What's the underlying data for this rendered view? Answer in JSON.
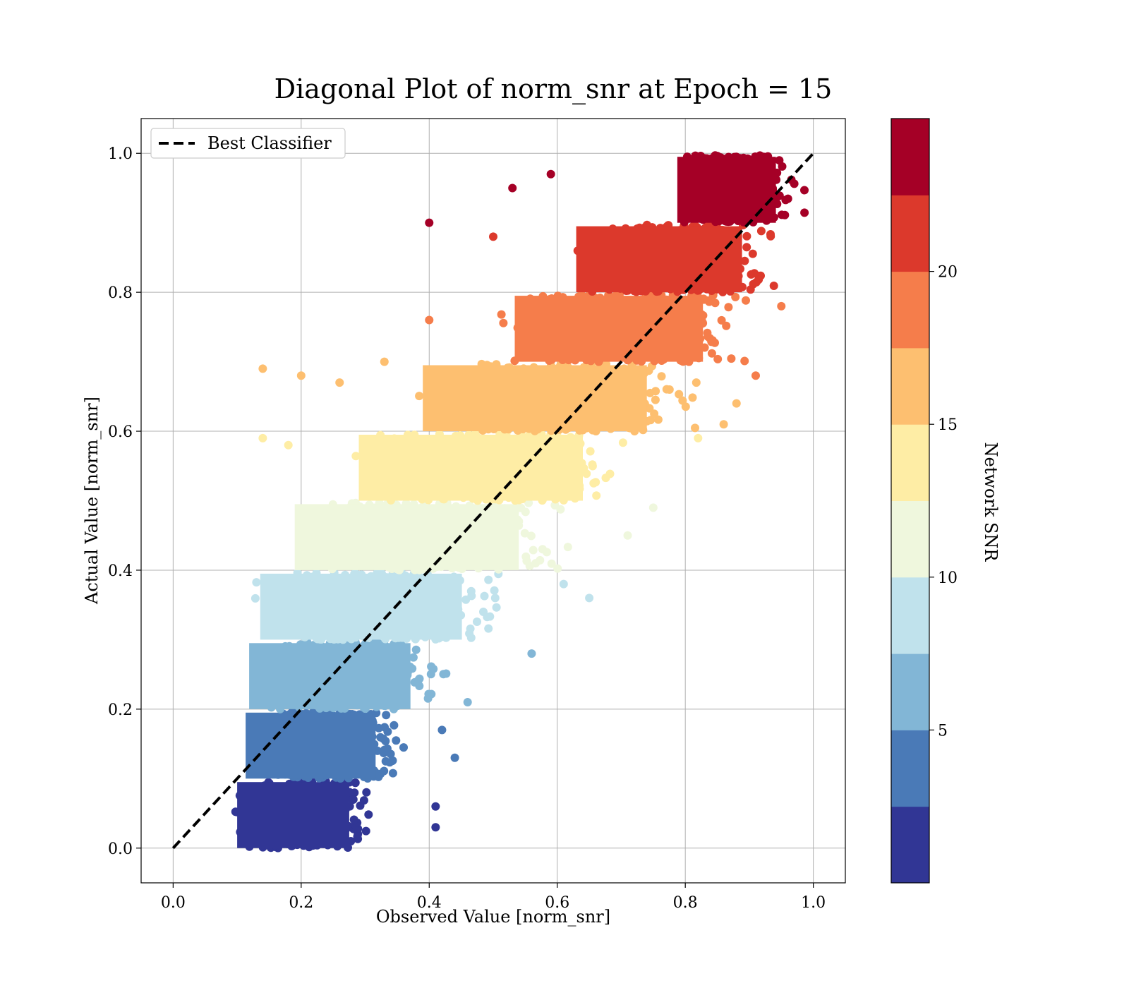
{
  "chart_data": {
    "type": "scatter",
    "title": "Diagonal Plot of norm_snr at Epoch = 15",
    "xlabel": "Observed Value [norm_snr]",
    "ylabel": "Actual Value [norm_snr]",
    "xlim": [
      -0.05,
      1.05
    ],
    "ylim": [
      -0.05,
      1.05
    ],
    "xticks": [
      0.0,
      0.2,
      0.4,
      0.6,
      0.8,
      1.0
    ],
    "yticks": [
      0.0,
      0.2,
      0.4,
      0.6,
      0.8,
      1.0
    ],
    "xtick_labels": [
      "0.0",
      "0.2",
      "0.4",
      "0.6",
      "0.8",
      "1.0"
    ],
    "ytick_labels": [
      "0.0",
      "0.2",
      "0.4",
      "0.6",
      "0.8",
      "1.0"
    ],
    "grid": true,
    "legend": {
      "position": "top-left",
      "entries": [
        "Best Classifier"
      ]
    },
    "reference_line": {
      "name": "Best Classifier",
      "style": "dashed",
      "color": "#000000",
      "x": [
        0.0,
        1.0
      ],
      "y": [
        0.0,
        1.0
      ]
    },
    "colorbar": {
      "label": "Network SNR",
      "range": [
        0,
        25
      ],
      "ticks": [
        5,
        10,
        15,
        20
      ],
      "tick_labels": [
        "5",
        "10",
        "15",
        "20"
      ],
      "colors": [
        "#313695",
        "#4575b4",
        "#74add1",
        "#abd9e9",
        "#e0f3f8",
        "#fee090",
        "#fdae61",
        "#f46d43",
        "#d73027",
        "#a50026"
      ],
      "band_colors": [
        "#313695",
        "#4a7ab7",
        "#82b6d6",
        "#c0e2ec",
        "#eff7dd",
        "#feeda5",
        "#fdbf70",
        "#f57d4b",
        "#dc392c",
        "#a50026"
      ]
    },
    "series_bands": [
      {
        "y_range": [
          0.0,
          0.1
        ],
        "x_range": [
          0.08,
          0.33
        ],
        "color": "#313695"
      },
      {
        "y_range": [
          0.1,
          0.2
        ],
        "x_range": [
          0.09,
          0.38
        ],
        "color": "#4a7ab7"
      },
      {
        "y_range": [
          0.2,
          0.3
        ],
        "x_range": [
          0.09,
          0.45
        ],
        "color": "#82b6d6"
      },
      {
        "y_range": [
          0.3,
          0.4
        ],
        "x_range": [
          0.1,
          0.55
        ],
        "color": "#c0e2ec"
      },
      {
        "y_range": [
          0.4,
          0.5
        ],
        "x_range": [
          0.15,
          0.65
        ],
        "color": "#eff7dd"
      },
      {
        "y_range": [
          0.5,
          0.6
        ],
        "x_range": [
          0.25,
          0.75
        ],
        "color": "#feeda5"
      },
      {
        "y_range": [
          0.6,
          0.7
        ],
        "x_range": [
          0.35,
          0.85
        ],
        "color": "#fdbf70"
      },
      {
        "y_range": [
          0.7,
          0.8
        ],
        "x_range": [
          0.5,
          0.92
        ],
        "color": "#f57d4b"
      },
      {
        "y_range": [
          0.8,
          0.9
        ],
        "x_range": [
          0.6,
          0.97
        ],
        "color": "#dc392c"
      },
      {
        "y_range": [
          0.9,
          1.0
        ],
        "x_range": [
          0.77,
          0.99
        ],
        "color": "#a50026"
      }
    ],
    "outliers": [
      {
        "x": 0.4,
        "y": 0.9,
        "color": "#a50026"
      },
      {
        "x": 0.53,
        "y": 0.95,
        "color": "#a50026"
      },
      {
        "x": 0.59,
        "y": 0.97,
        "color": "#a50026"
      },
      {
        "x": 0.14,
        "y": 0.69,
        "color": "#fdbf70"
      },
      {
        "x": 0.2,
        "y": 0.68,
        "color": "#fdbf70"
      },
      {
        "x": 0.26,
        "y": 0.67,
        "color": "#fdbf70"
      },
      {
        "x": 0.33,
        "y": 0.7,
        "color": "#fdbf70"
      },
      {
        "x": 0.4,
        "y": 0.76,
        "color": "#f57d4b"
      },
      {
        "x": 0.5,
        "y": 0.88,
        "color": "#dc392c"
      },
      {
        "x": 0.14,
        "y": 0.59,
        "color": "#feeda5"
      },
      {
        "x": 0.18,
        "y": 0.58,
        "color": "#feeda5"
      },
      {
        "x": 0.65,
        "y": 0.36,
        "color": "#c0e2ec"
      },
      {
        "x": 0.61,
        "y": 0.38,
        "color": "#c0e2ec"
      },
      {
        "x": 0.56,
        "y": 0.28,
        "color": "#82b6d6"
      },
      {
        "x": 0.46,
        "y": 0.21,
        "color": "#82b6d6"
      },
      {
        "x": 0.42,
        "y": 0.17,
        "color": "#4a7ab7"
      },
      {
        "x": 0.44,
        "y": 0.13,
        "color": "#4a7ab7"
      },
      {
        "x": 0.41,
        "y": 0.03,
        "color": "#313695"
      },
      {
        "x": 0.41,
        "y": 0.06,
        "color": "#313695"
      },
      {
        "x": 0.86,
        "y": 0.61,
        "color": "#fdbf70"
      },
      {
        "x": 0.88,
        "y": 0.64,
        "color": "#fdbf70"
      },
      {
        "x": 0.91,
        "y": 0.68,
        "color": "#f57d4b"
      },
      {
        "x": 0.95,
        "y": 0.78,
        "color": "#f57d4b"
      },
      {
        "x": 0.75,
        "y": 0.49,
        "color": "#eff7dd"
      },
      {
        "x": 0.71,
        "y": 0.45,
        "color": "#eff7dd"
      },
      {
        "x": 0.82,
        "y": 0.59,
        "color": "#feeda5"
      }
    ]
  }
}
